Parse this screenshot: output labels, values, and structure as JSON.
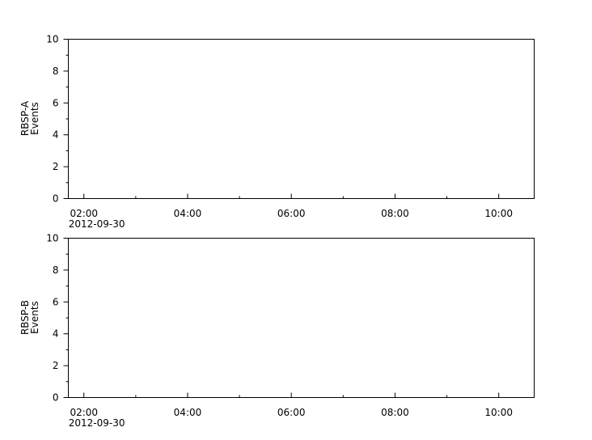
{
  "chart_data": [
    {
      "type": "line",
      "ylabel": [
        "RBSP-A",
        "Events"
      ],
      "ylim": [
        0,
        10
      ],
      "yticks": [
        "0",
        "2",
        "4",
        "6",
        "8",
        "10"
      ],
      "xlim": [
        "2012-09-30T01:42",
        "2012-09-30T10:41"
      ],
      "xticks": [
        "02:00",
        "04:00",
        "06:00",
        "08:00",
        "10:00"
      ],
      "xdate_label": "2012-09-30",
      "series": [],
      "grid": false
    },
    {
      "type": "line",
      "ylabel": [
        "RBSP-B",
        "Events"
      ],
      "ylim": [
        0,
        10
      ],
      "yticks": [
        "0",
        "2",
        "4",
        "6",
        "8",
        "10"
      ],
      "xlim": [
        "2012-09-30T01:42",
        "2012-09-30T10:41"
      ],
      "xticks": [
        "02:00",
        "04:00",
        "06:00",
        "08:00",
        "10:00"
      ],
      "xdate_label": "2012-09-30",
      "series": [],
      "grid": false
    }
  ]
}
